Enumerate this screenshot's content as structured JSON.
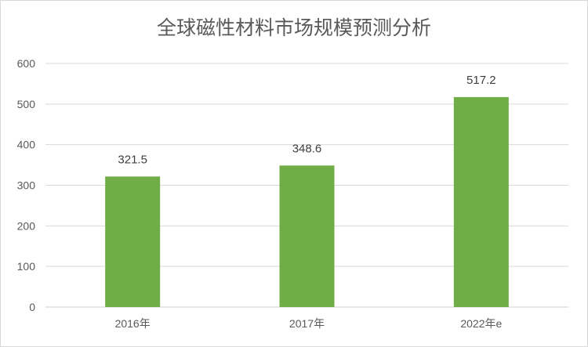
{
  "chart_data": {
    "type": "bar",
    "title": "全球磁性材料市场规模预测分析",
    "categories": [
      "2016年",
      "2017年",
      "2022年e"
    ],
    "values": [
      321.5,
      348.6,
      517.2
    ],
    "data_labels": [
      "321.5",
      "348.6",
      "517.2"
    ],
    "xlabel": "",
    "ylabel": "",
    "ylim": [
      0,
      600
    ],
    "yticks": [
      "0",
      "100",
      "200",
      "300",
      "400",
      "500",
      "600"
    ],
    "grid": true,
    "legend": "none",
    "bar_color": "#70AD47"
  }
}
